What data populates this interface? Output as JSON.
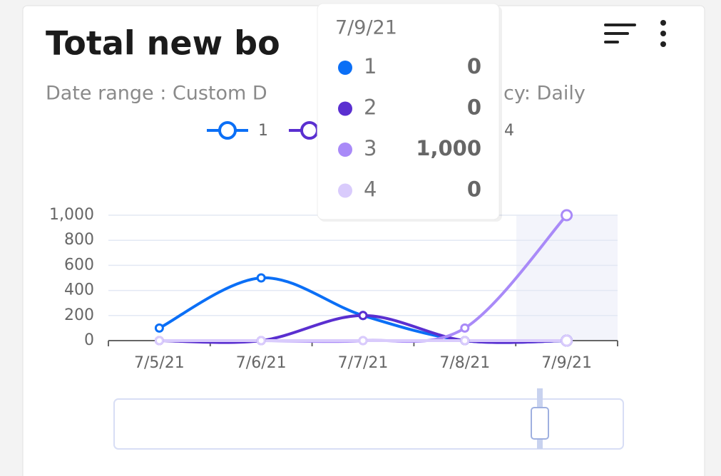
{
  "chart_data": {
    "type": "line",
    "title": "Total new bo",
    "subtitle_parts": [
      "Date range : Custom D",
      "cy: Daily"
    ],
    "categories": [
      "7/5/21",
      "7/6/21",
      "7/7/21",
      "7/8/21",
      "7/9/21"
    ],
    "series": [
      {
        "name": "1",
        "color": "#0b6ff6",
        "values": [
          100,
          500,
          200,
          0,
          0
        ],
        "value_labels": [
          null,
          null,
          null,
          null,
          "0"
        ]
      },
      {
        "name": "2",
        "color": "#5a2fd0",
        "values": [
          0,
          0,
          200,
          0,
          0
        ],
        "value_labels": [
          null,
          null,
          null,
          null,
          "0"
        ]
      },
      {
        "name": "3",
        "color": "#a98af8",
        "values": [
          0,
          0,
          0,
          100,
          1000
        ],
        "value_labels": [
          null,
          null,
          null,
          null,
          "1,000"
        ]
      },
      {
        "name": "4",
        "color": "#d9cbfc",
        "values": [
          0,
          0,
          0,
          0,
          0
        ],
        "value_labels": [
          null,
          null,
          null,
          null,
          "0"
        ]
      }
    ],
    "ylim": [
      0,
      1000
    ],
    "yticks": [
      0,
      200,
      400,
      600,
      800,
      {
        "value": 1000,
        "label": "1,000"
      }
    ],
    "grid": true,
    "smooth": true,
    "tooltip_index": 4
  }
}
